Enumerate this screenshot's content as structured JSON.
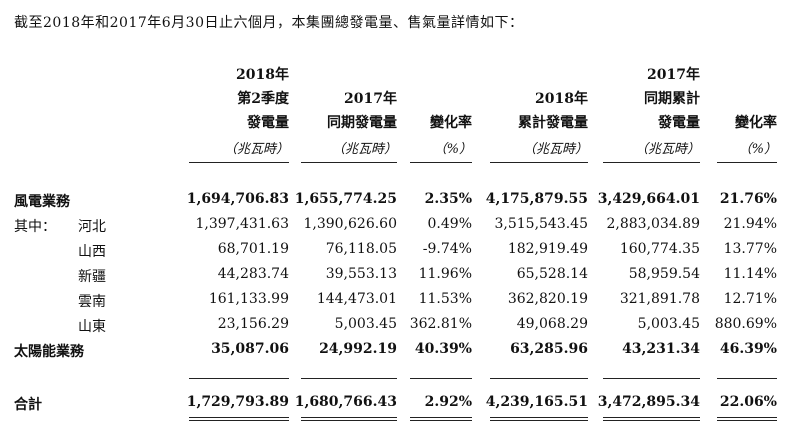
{
  "intro": "截至2018年和2017年6月30日止六個月，本集團總發電量、售氣量詳情如下：",
  "headers": {
    "c1": [
      "2018年",
      "第2季度",
      "發電量"
    ],
    "c2": [
      "2017年",
      "同期發電量"
    ],
    "c3": [
      "變化率"
    ],
    "c4": [
      "2018年",
      "累計發電量"
    ],
    "c5": [
      "2017年",
      "同期累計",
      "發電量"
    ],
    "c6": [
      "變化率"
    ]
  },
  "units": {
    "c1": "（兆瓦時）",
    "c2": "（兆瓦時）",
    "c3": "（%）",
    "c4": "（兆瓦時）",
    "c5": "（兆瓦時）",
    "c6": "（%）"
  },
  "rows": [
    {
      "label": "風電業務",
      "prefix": "",
      "values": [
        "1,694,706.83",
        "1,655,774.25",
        "2.35%",
        "4,175,879.55",
        "3,429,664.01",
        "21.76%"
      ]
    },
    {
      "label": "河北",
      "prefix": "其中：",
      "values": [
        "1,397,431.63",
        "1,390,626.60",
        "0.49%",
        "3,515,543.45",
        "2,883,034.89",
        "21.94%"
      ]
    },
    {
      "label": "山西",
      "prefix": "",
      "values": [
        "68,701.19",
        "76,118.05",
        "-9.74%",
        "182,919.49",
        "160,774.35",
        "13.77%"
      ]
    },
    {
      "label": "新疆",
      "prefix": "",
      "values": [
        "44,283.74",
        "39,553.13",
        "11.96%",
        "65,528.14",
        "58,959.54",
        "11.14%"
      ]
    },
    {
      "label": "雲南",
      "prefix": "",
      "values": [
        "161,133.99",
        "144,473.01",
        "11.53%",
        "362,820.19",
        "321,891.78",
        "12.71%"
      ]
    },
    {
      "label": "山東",
      "prefix": "",
      "values": [
        "23,156.29",
        "5,003.45",
        "362.81%",
        "49,068.29",
        "5,003.45",
        "880.69%"
      ]
    },
    {
      "label": "太陽能業務",
      "prefix": "",
      "values": [
        "35,087.06",
        "24,992.19",
        "40.39%",
        "63,285.96",
        "43,231.34",
        "46.39%"
      ]
    },
    {
      "label": "合計",
      "prefix": "",
      "values": [
        "1,729,793.89",
        "1,680,766.43",
        "2.92%",
        "4,239,165.51",
        "3,472,895.34",
        "22.06%"
      ]
    }
  ]
}
